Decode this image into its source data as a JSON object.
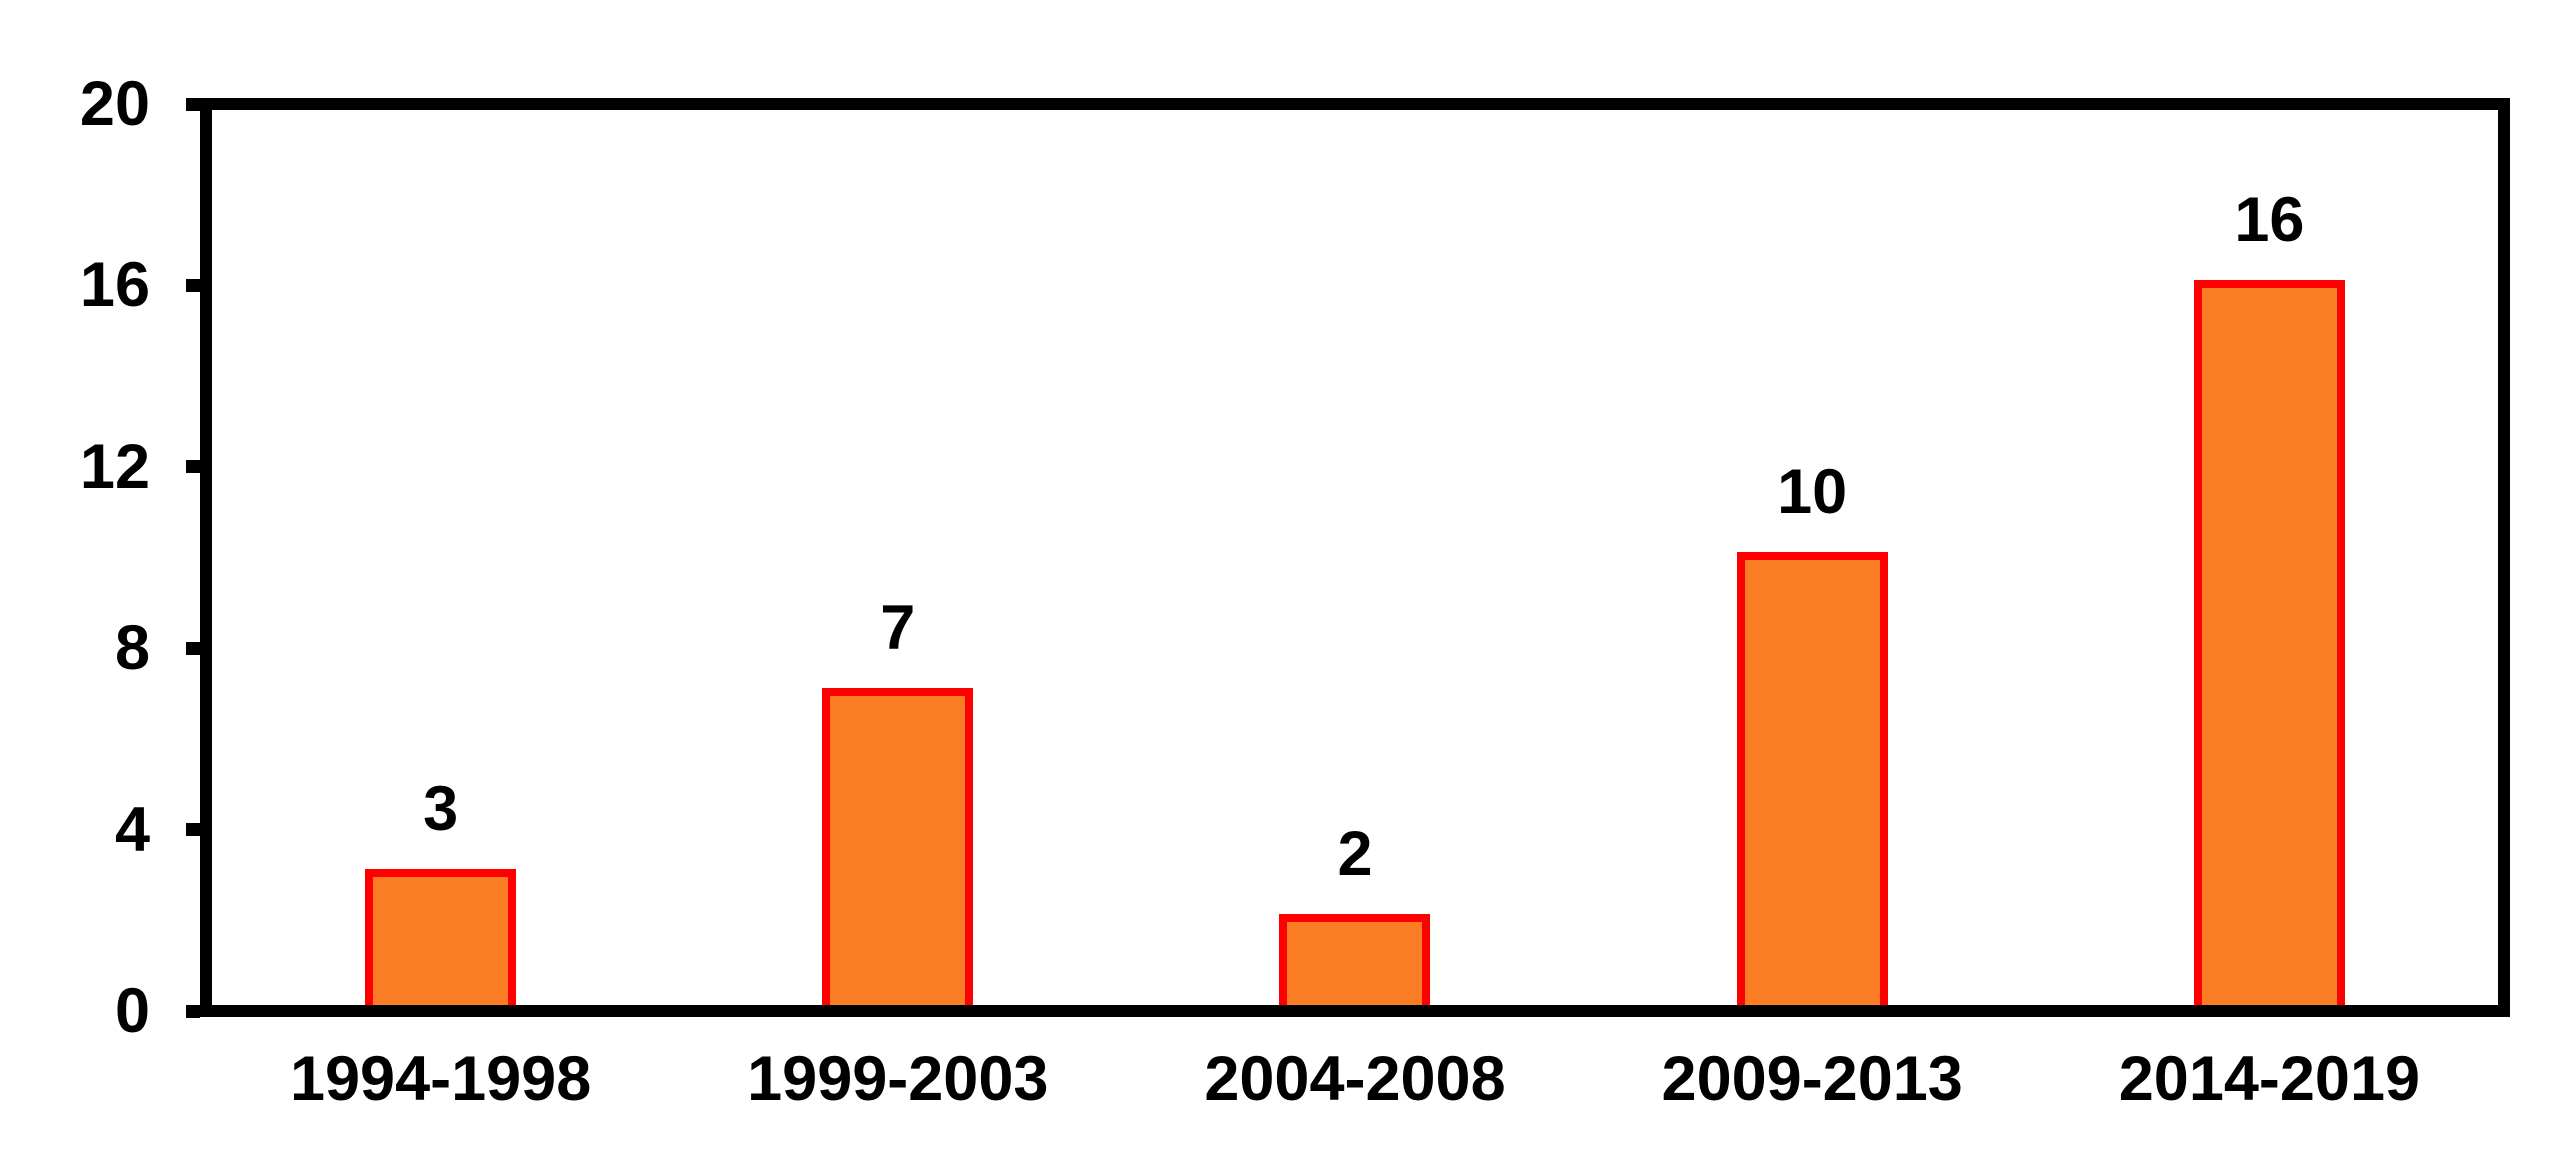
{
  "chart_data": {
    "type": "bar",
    "categories": [
      "1994-1998",
      "1999-2003",
      "2004-2008",
      "2009-2013",
      "2014-2019"
    ],
    "values": [
      3,
      7,
      2,
      10,
      16
    ],
    "title": "",
    "xlabel": "",
    "ylabel": "",
    "ylim": [
      0,
      20
    ],
    "y_ticks": [
      0,
      4,
      8,
      12,
      16,
      20
    ],
    "y_tick_labels_top_to_bottom": [
      "20",
      "16",
      "12",
      "8",
      "4",
      "0"
    ],
    "grid": false,
    "legend": "none",
    "data_labels_shown": true,
    "colors": {
      "bar_fill": "#FA7D26",
      "bar_border": "#FE0000",
      "axis": "#000000",
      "text": "#000000",
      "background": "#FFFFFF"
    }
  }
}
